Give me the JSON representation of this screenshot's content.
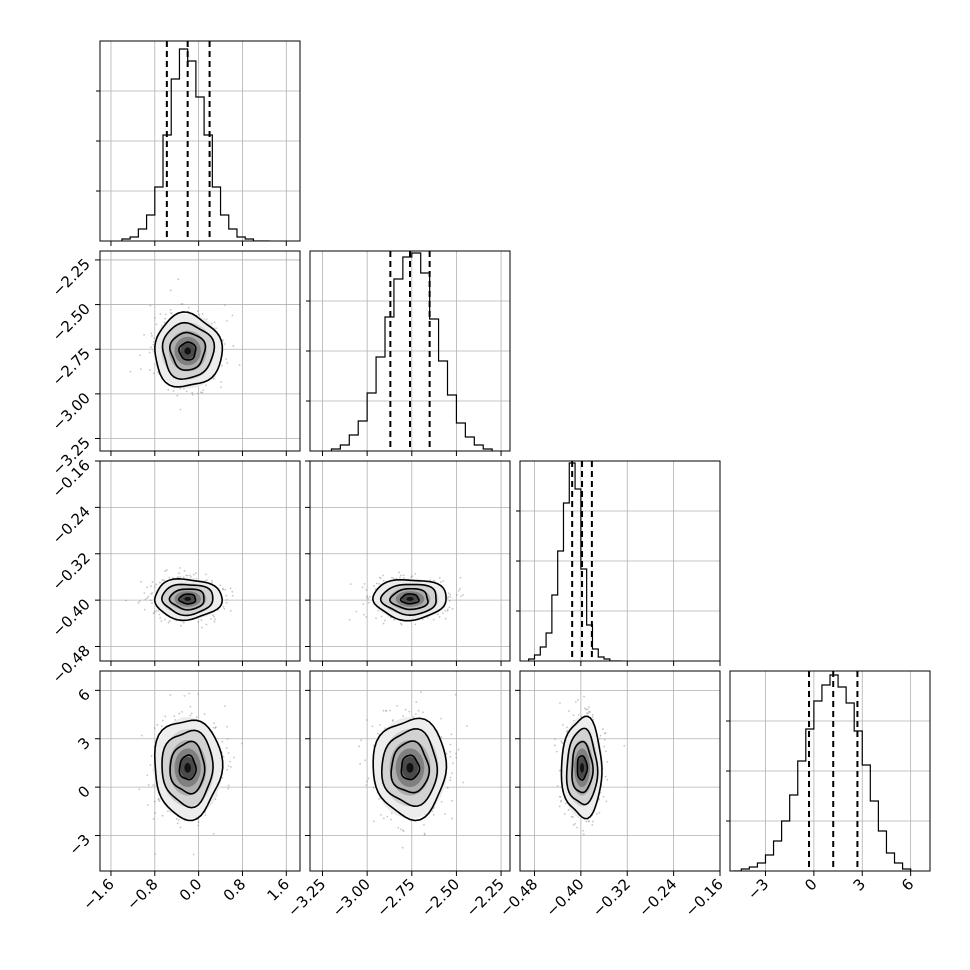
{
  "chart_data": {
    "type": "corner",
    "parameters": [
      {
        "name": "",
        "range": [
          -1.8,
          1.85
        ],
        "ticks": [
          -1.6,
          -0.8,
          0.0,
          0.8,
          1.6
        ],
        "tick_labels": [
          "−1.6",
          "−0.8",
          "0.0",
          "0.8",
          "1.6"
        ],
        "quantiles": [
          -0.58,
          -0.2,
          0.2
        ],
        "mean": -0.2,
        "sd": 0.3,
        "hist_max": 1,
        "histogram": {
          "bins": [
            -1.4,
            -1.25,
            -1.1,
            -0.95,
            -0.8,
            -0.65,
            -0.5,
            -0.35,
            -0.2,
            -0.05,
            0.1,
            0.25,
            0.4,
            0.55,
            0.7,
            0.85,
            1.0,
            1.15,
            1.3
          ],
          "counts": [
            0.01,
            0.02,
            0.06,
            0.13,
            0.27,
            0.53,
            0.81,
            0.96,
            0.9,
            0.72,
            0.53,
            0.27,
            0.13,
            0.06,
            0.02,
            0.01,
            0.0,
            0.0
          ]
        }
      },
      {
        "name": "",
        "range": [
          -3.32,
          -2.2
        ],
        "ticks": [
          -3.25,
          -3.0,
          -2.75,
          -2.5,
          -2.25
        ],
        "tick_labels": [
          "−3.25",
          "−3.00",
          "−2.75",
          "−2.50",
          "−2.25"
        ],
        "quantiles": [
          -2.87,
          -2.76,
          -2.65
        ],
        "mean": -2.76,
        "sd": 0.1,
        "hist_max": 1,
        "histogram": {
          "bins": [
            -3.2,
            -3.15,
            -3.1,
            -3.05,
            -3.0,
            -2.95,
            -2.9,
            -2.85,
            -2.8,
            -2.75,
            -2.7,
            -2.65,
            -2.6,
            -2.55,
            -2.5,
            -2.45,
            -2.4,
            -2.35,
            -2.3
          ],
          "counts": [
            0.01,
            0.03,
            0.08,
            0.15,
            0.29,
            0.47,
            0.67,
            0.86,
            0.97,
            0.99,
            0.89,
            0.66,
            0.45,
            0.28,
            0.14,
            0.07,
            0.03,
            0.01
          ]
        }
      },
      {
        "name": "",
        "range": [
          -0.505,
          -0.16
        ],
        "ticks": [
          -0.48,
          -0.4,
          -0.32,
          -0.24,
          -0.16
        ],
        "tick_labels": [
          "−0.48",
          "−0.40",
          "−0.32",
          "−0.24",
          "−0.16"
        ],
        "quantiles": [
          -0.415,
          -0.398,
          -0.381
        ],
        "mean": -0.398,
        "sd": 0.017,
        "hist_max": 1,
        "histogram": {
          "bins": [
            -0.49,
            -0.48,
            -0.47,
            -0.46,
            -0.45,
            -0.44,
            -0.43,
            -0.42,
            -0.41,
            -0.4,
            -0.39,
            -0.38,
            -0.37,
            -0.36,
            -0.35,
            -0.34,
            -0.33
          ],
          "counts": [
            0.01,
            0.03,
            0.07,
            0.14,
            0.33,
            0.55,
            0.79,
            0.99,
            0.86,
            0.46,
            0.18,
            0.06,
            0.02,
            0.01,
            0.0,
            0.0
          ]
        }
      },
      {
        "name": "",
        "range": [
          -5.2,
          7.2
        ],
        "ticks": [
          -3,
          0,
          3,
          6
        ],
        "tick_labels": [
          "−3",
          "0",
          "3",
          "6"
        ],
        "quantiles": [
          -0.3,
          1.2,
          2.7
        ],
        "mean": 1.2,
        "sd": 1.5,
        "hist_max": 1,
        "histogram": {
          "bins": [
            -5.0,
            -4.5,
            -4.0,
            -3.5,
            -3.0,
            -2.5,
            -2.0,
            -1.5,
            -1.0,
            -0.5,
            0.0,
            0.5,
            1.0,
            1.5,
            2.0,
            2.5,
            3.0,
            3.5,
            4.0,
            4.5,
            5.0,
            5.5,
            6.0
          ],
          "counts": [
            0.0,
            0.01,
            0.02,
            0.04,
            0.08,
            0.15,
            0.25,
            0.38,
            0.55,
            0.71,
            0.85,
            0.93,
            0.98,
            0.92,
            0.84,
            0.7,
            0.53,
            0.35,
            0.2,
            0.09,
            0.04,
            0.01
          ]
        }
      }
    ],
    "grid": true,
    "contour_levels": [
      "0.5-sigma",
      "1-sigma",
      "1.5-sigma",
      "2-sigma"
    ],
    "scatter_color": "#808080",
    "density_colormap": [
      "#ffffff",
      "#000000"
    ]
  }
}
